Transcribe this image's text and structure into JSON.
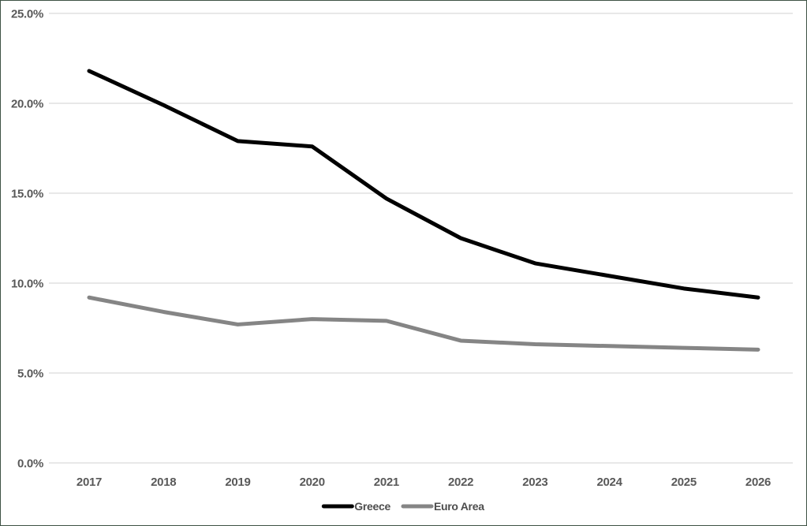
{
  "chart_data": {
    "type": "line",
    "title": "",
    "xlabel": "",
    "ylabel": "",
    "categories": [
      "2017",
      "2018",
      "2019",
      "2020",
      "2021",
      "2022",
      "2023",
      "2024",
      "2025",
      "2026"
    ],
    "series": [
      {
        "name": "Greece",
        "color": "#000000",
        "values": [
          21.8,
          19.9,
          17.9,
          17.6,
          14.7,
          12.5,
          11.1,
          10.4,
          9.7,
          9.2
        ]
      },
      {
        "name": "Euro Area",
        "color": "#858585",
        "values": [
          9.2,
          8.4,
          7.7,
          8.0,
          7.9,
          6.8,
          6.6,
          6.5,
          6.4,
          6.3
        ]
      }
    ],
    "ylim": [
      0,
      25
    ],
    "ytick_step": 5,
    "ytick_labels": [
      "0.0%",
      "5.0%",
      "10.0%",
      "15.0%",
      "20.0%",
      "25.0%"
    ],
    "grid": true,
    "legend_position": "bottom-center"
  },
  "colors": {
    "background": "#ffffff",
    "chart_border": "#3e5244",
    "gridline": "#d9d9d9",
    "tick_label": "#595959",
    "legend_label": "#4d4d4d"
  }
}
